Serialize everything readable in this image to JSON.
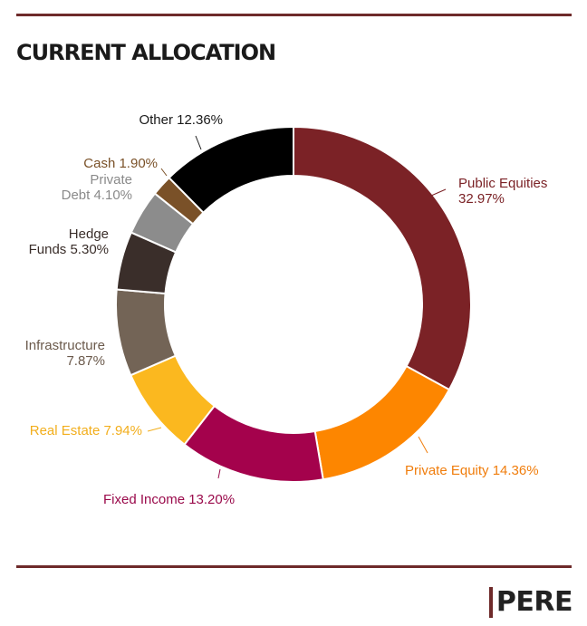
{
  "header": {
    "title": "CURRENT ALLOCATION"
  },
  "brand": {
    "name": "PERE",
    "accent": "#6e2a2a"
  },
  "chart_data": {
    "type": "pie",
    "variant": "donut",
    "title": "CURRENT ALLOCATION",
    "start": "12 o'clock, clockwise",
    "slices": [
      {
        "name": "Public Equities",
        "value": 32.97,
        "display": "32.97%",
        "color": "#7b2226",
        "label_color": "#7b2226",
        "label_lines": [
          "Public Equities",
          "32.97%"
        ]
      },
      {
        "name": "Private Equity",
        "value": 14.36,
        "display": "14.36%",
        "color": "#fd8600",
        "label_color": "#f07d0c",
        "label_lines": [
          "Private Equity 14.36%"
        ]
      },
      {
        "name": "Fixed Income",
        "value": 13.2,
        "display": "13.20%",
        "color": "#a4024c",
        "label_color": "#9a0a4b",
        "label_lines": [
          "Fixed Income 13.20%"
        ]
      },
      {
        "name": "Real Estate",
        "value": 7.94,
        "display": "7.94%",
        "color": "#fbb81f",
        "label_color": "#f2ae1c",
        "label_lines": [
          "Real Estate 7.94%"
        ]
      },
      {
        "name": "Infrastructure",
        "value": 7.87,
        "display": "7.87%",
        "color": "#736456",
        "label_color": "#6b5a4c",
        "label_lines": [
          "Infrastructure",
          "7.87%"
        ]
      },
      {
        "name": "Hedge Funds",
        "value": 5.3,
        "display": "5.30%",
        "color": "#3a2e2a",
        "label_color": "#3a2e2a",
        "label_lines": [
          "Hedge",
          "Funds 5.30%"
        ]
      },
      {
        "name": "Private Debt",
        "value": 4.1,
        "display": "4.10%",
        "color": "#8c8c8c",
        "label_color": "#8a8a8a",
        "label_lines": [
          "Private",
          "Debt 4.10%"
        ]
      },
      {
        "name": "Cash",
        "value": 1.9,
        "display": "1.90%",
        "color": "#7a5128",
        "label_color": "#7a5128",
        "label_lines": [
          "Cash 1.90%"
        ]
      },
      {
        "name": "Other",
        "value": 12.36,
        "display": "12.36%",
        "color": "#000000",
        "label_color": "#1a1a1a",
        "label_lines": [
          "Other 12.36%"
        ]
      }
    ]
  }
}
